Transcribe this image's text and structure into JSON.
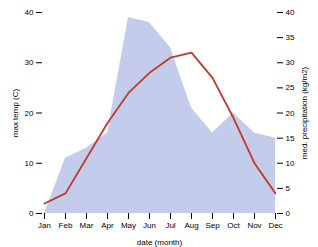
{
  "chart_data": {
    "type": "line",
    "categories": [
      "Jan",
      "Feb",
      "Mar",
      "Apr",
      "May",
      "Jun",
      "Jul",
      "Aug",
      "Sep",
      "Oct",
      "Nov",
      "Dec"
    ],
    "xlabel": "date (month)",
    "ylabel": "max temp (C)",
    "y2label": "med. precipitation (kg/m2)",
    "series": [
      {
        "type": "area",
        "axis": "y2",
        "color": "#b8c4e8",
        "values": [
          0,
          11,
          13,
          16,
          39,
          38,
          33,
          21,
          16,
          20,
          16,
          15
        ]
      },
      {
        "type": "line",
        "color": "#c0392b",
        "values": [
          2,
          4,
          11,
          18,
          24,
          28,
          31,
          32,
          27,
          19,
          10,
          4
        ]
      }
    ],
    "ylim": [
      0,
      40
    ],
    "yticks": [
      0,
      10,
      20,
      30,
      40
    ],
    "y2lim": [
      0,
      40
    ],
    "y2ticks": [
      0,
      5,
      10,
      15,
      20,
      25,
      30,
      35,
      40
    ]
  }
}
